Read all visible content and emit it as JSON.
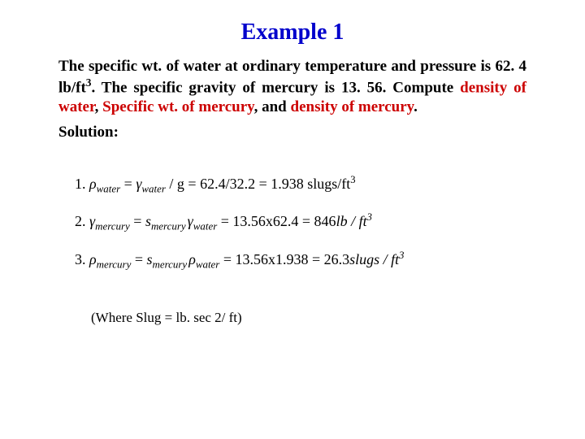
{
  "title": "Example 1",
  "colors": {
    "title": "#0000cc",
    "body_text": "#000000",
    "emphasis": "#cc0000",
    "background": "#ffffff"
  },
  "typography": {
    "title_fontsize_pt": 21,
    "body_fontsize_pt": 14,
    "eq_fontsize_pt": 13,
    "font_family": "Times New Roman"
  },
  "problem": {
    "pre1": "The specific wt. of water at ordinary temperature and pressure is 62. 4 lb/ft",
    "sup1": "3",
    "pre2": ". The specific gravity of mercury is 13. 56. Compute ",
    "red1": "density of water",
    "mid1": ", ",
    "red2": "Specific wt. of mercury",
    "mid2": ", and ",
    "red3": "density of mercury",
    "end": "."
  },
  "solution_label": "Solution:",
  "equations": [
    {
      "index": "1.",
      "lhs_sym": "ρ",
      "lhs_sub": "water",
      "rhs_a_sym": "γ",
      "rhs_a_sub": "water",
      "div": " / g = ",
      "numeric": "62.4/32.2 = 1.938",
      "unit_text": " slugs/ft",
      "unit_sup": "3"
    },
    {
      "index": "2.",
      "lhs_sym": "γ",
      "lhs_sub": "mercury",
      "rhs_a_sym": "s",
      "rhs_a_sub": "mercury",
      "rhs_b_sym": "γ",
      "rhs_b_sub": "water",
      "div": " = ",
      "numeric": "13.56x62.4 = 846",
      "unit_text": "lb / ft",
      "unit_sup": "3"
    },
    {
      "index": "3.",
      "lhs_sym": "ρ",
      "lhs_sub": "mercury",
      "rhs_a_sym": "s",
      "rhs_a_sub": "mercury",
      "rhs_b_sym": "ρ",
      "rhs_b_sub": "water",
      "div": " = ",
      "numeric": "13.56x1.938 = 26.3",
      "unit_text": "slugs / ft",
      "unit_sup": "3"
    }
  ],
  "note": "(Where Slug = lb. sec 2/ ft)"
}
